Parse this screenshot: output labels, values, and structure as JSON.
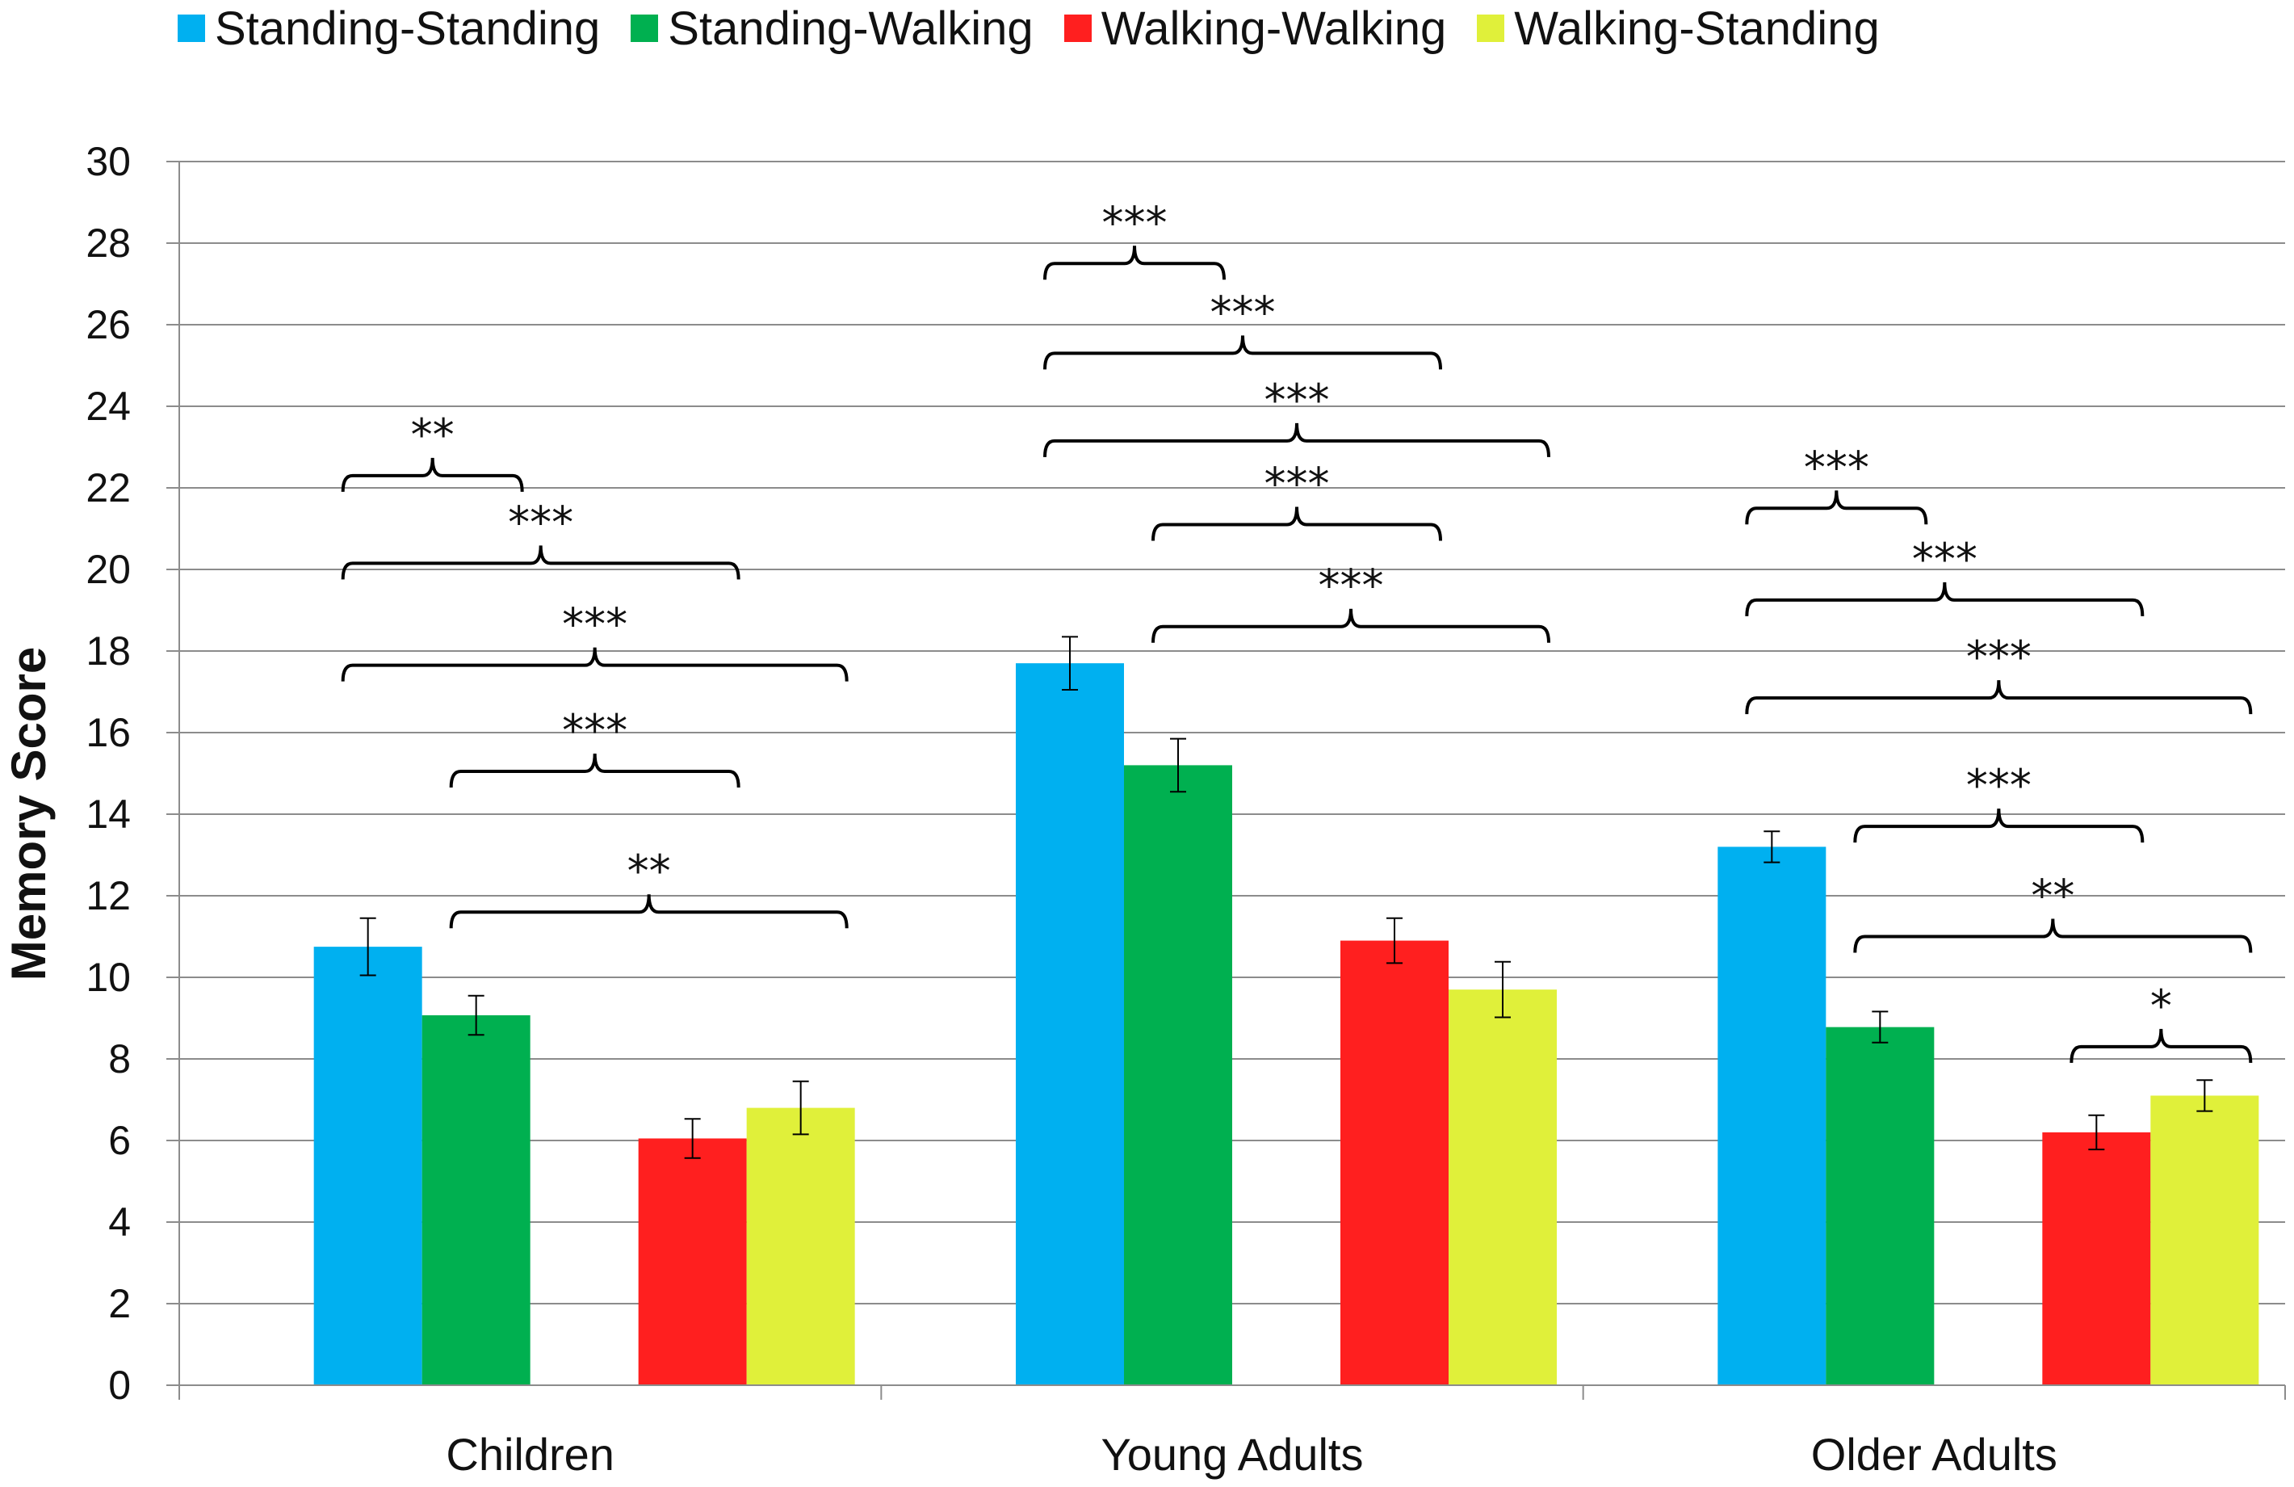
{
  "chart_data": {
    "type": "bar",
    "title": "",
    "xlabel": "",
    "ylabel": "Memory Score",
    "ylim": [
      0,
      30
    ],
    "ytick_step": 2,
    "yticks": [
      "0",
      "2",
      "4",
      "6",
      "8",
      "10",
      "12",
      "14",
      "16",
      "18",
      "20",
      "22",
      "24",
      "26",
      "28",
      "30"
    ],
    "grid": true,
    "legend_position": "top",
    "categories": [
      "Children",
      "Young Adults",
      "Older Adults"
    ],
    "series": [
      {
        "name": "Standing-Standing",
        "color": "#00B0F0",
        "values": [
          10.75,
          17.7,
          13.2
        ],
        "errors": [
          0.7,
          0.65,
          0.38
        ]
      },
      {
        "name": "Standing-Walking",
        "color": "#00B050",
        "values": [
          9.07,
          15.2,
          8.78
        ],
        "errors": [
          0.48,
          0.65,
          0.38
        ]
      },
      {
        "name": "Walking-Walking",
        "color": "#FF1F1F",
        "values": [
          6.05,
          10.9,
          6.2
        ],
        "errors": [
          0.48,
          0.55,
          0.42
        ]
      },
      {
        "name": "Walking-Standing",
        "color": "#E0F03A",
        "values": [
          6.8,
          9.7,
          7.1
        ],
        "errors": [
          0.65,
          0.68,
          0.38
        ]
      }
    ],
    "significance": [
      {
        "category": 0,
        "from": 0,
        "to": 1,
        "level": 22.3,
        "label": "**"
      },
      {
        "category": 0,
        "from": 0,
        "to": 2,
        "level": 20.15,
        "label": "***"
      },
      {
        "category": 0,
        "from": 0,
        "to": 3,
        "level": 17.65,
        "label": "***"
      },
      {
        "category": 0,
        "from": 1,
        "to": 2,
        "level": 15.05,
        "label": "***"
      },
      {
        "category": 0,
        "from": 1,
        "to": 3,
        "level": 11.6,
        "label": "**"
      },
      {
        "category": 1,
        "from": 0,
        "to": 1,
        "level": 27.5,
        "label": "***"
      },
      {
        "category": 1,
        "from": 0,
        "to": 2,
        "level": 25.3,
        "label": "***"
      },
      {
        "category": 1,
        "from": 0,
        "to": 3,
        "level": 23.15,
        "label": "***"
      },
      {
        "category": 1,
        "from": 1,
        "to": 2,
        "level": 21.1,
        "label": "***"
      },
      {
        "category": 1,
        "from": 1,
        "to": 3,
        "level": 18.6,
        "label": "***"
      },
      {
        "category": 2,
        "from": 0,
        "to": 1,
        "level": 21.5,
        "label": "***"
      },
      {
        "category": 2,
        "from": 0,
        "to": 2,
        "level": 19.25,
        "label": "***"
      },
      {
        "category": 2,
        "from": 0,
        "to": 3,
        "level": 16.85,
        "label": "***"
      },
      {
        "category": 2,
        "from": 1,
        "to": 2,
        "level": 13.7,
        "label": "***"
      },
      {
        "category": 2,
        "from": 1,
        "to": 3,
        "level": 11.0,
        "label": "**"
      },
      {
        "category": 2,
        "from": 2,
        "to": 3,
        "level": 8.3,
        "label": "*"
      }
    ]
  }
}
